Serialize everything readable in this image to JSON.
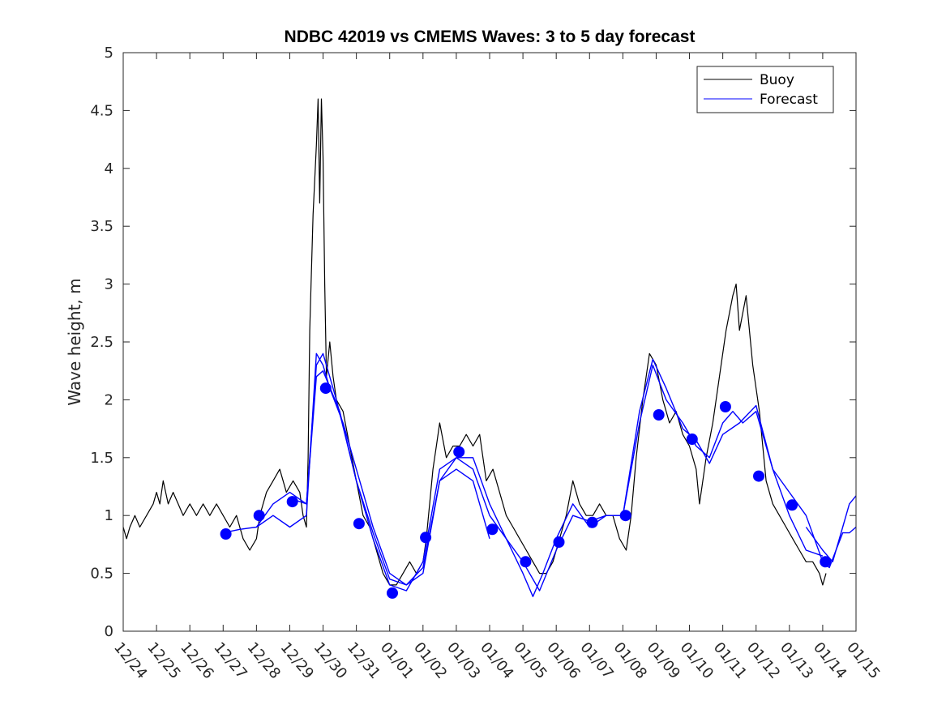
{
  "chart_data": {
    "type": "line",
    "title": "NDBC 42019 vs CMEMS Waves: 3 to 5 day forecast",
    "xlabel": "",
    "ylabel": "Wave height, m",
    "ylim": [
      0,
      5
    ],
    "yticks": [
      0,
      0.5,
      1,
      1.5,
      2,
      2.5,
      3,
      3.5,
      4,
      4.5,
      5
    ],
    "ytick_labels": [
      "0",
      "0.5",
      "1",
      "1.5",
      "2",
      "2.5",
      "3",
      "3.5",
      "4",
      "4.5",
      "5"
    ],
    "xlim": [
      0,
      22
    ],
    "x_units": "days since 12/24 00:00",
    "xtick_labels": [
      "12/24",
      "12/25",
      "12/26",
      "12/27",
      "12/28",
      "12/29",
      "12/30",
      "12/31",
      "01/01",
      "01/02",
      "01/03",
      "01/04",
      "01/05",
      "01/06",
      "01/07",
      "01/08",
      "01/09",
      "01/10",
      "01/11",
      "01/12",
      "01/13",
      "01/14",
      "01/15"
    ],
    "legend": {
      "location": "top-right",
      "entries": [
        "Buoy",
        "Forecast"
      ]
    },
    "colors": {
      "buoy": "#000000",
      "forecast": "#0000ff",
      "markers": "#0000ff"
    },
    "series": [
      {
        "name": "Buoy",
        "color": "#000000",
        "points": [
          [
            0.0,
            0.9
          ],
          [
            0.1,
            0.8
          ],
          [
            0.2,
            0.9
          ],
          [
            0.35,
            1.0
          ],
          [
            0.5,
            0.9
          ],
          [
            0.7,
            1.0
          ],
          [
            0.9,
            1.1
          ],
          [
            1.0,
            1.2
          ],
          [
            1.1,
            1.1
          ],
          [
            1.2,
            1.3
          ],
          [
            1.35,
            1.1
          ],
          [
            1.5,
            1.2
          ],
          [
            1.65,
            1.1
          ],
          [
            1.8,
            1.0
          ],
          [
            2.0,
            1.1
          ],
          [
            2.2,
            1.0
          ],
          [
            2.4,
            1.1
          ],
          [
            2.6,
            1.0
          ],
          [
            2.8,
            1.1
          ],
          [
            3.0,
            1.0
          ],
          [
            3.2,
            0.9
          ],
          [
            3.4,
            1.0
          ],
          [
            3.6,
            0.8
          ],
          [
            3.8,
            0.7
          ],
          [
            4.0,
            0.8
          ],
          [
            4.1,
            1.0
          ],
          [
            4.3,
            1.2
          ],
          [
            4.5,
            1.3
          ],
          [
            4.7,
            1.4
          ],
          [
            4.9,
            1.2
          ],
          [
            5.1,
            1.3
          ],
          [
            5.3,
            1.2
          ],
          [
            5.4,
            1.0
          ],
          [
            5.5,
            0.9
          ],
          [
            5.55,
            1.5
          ],
          [
            5.6,
            2.6
          ],
          [
            5.7,
            3.6
          ],
          [
            5.8,
            4.2
          ],
          [
            5.85,
            4.6
          ],
          [
            5.9,
            3.7
          ],
          [
            5.95,
            4.6
          ],
          [
            6.0,
            4.1
          ],
          [
            6.05,
            3.0
          ],
          [
            6.1,
            2.2
          ],
          [
            6.2,
            2.5
          ],
          [
            6.3,
            2.2
          ],
          [
            6.4,
            2.0
          ],
          [
            6.6,
            1.9
          ],
          [
            6.8,
            1.6
          ],
          [
            7.0,
            1.3
          ],
          [
            7.2,
            1.0
          ],
          [
            7.4,
            0.9
          ],
          [
            7.6,
            0.7
          ],
          [
            7.8,
            0.5
          ],
          [
            8.0,
            0.4
          ],
          [
            8.2,
            0.4
          ],
          [
            8.4,
            0.5
          ],
          [
            8.6,
            0.6
          ],
          [
            8.8,
            0.5
          ],
          [
            9.0,
            0.6
          ],
          [
            9.1,
            0.8
          ],
          [
            9.2,
            1.1
          ],
          [
            9.3,
            1.4
          ],
          [
            9.4,
            1.6
          ],
          [
            9.5,
            1.8
          ],
          [
            9.7,
            1.5
          ],
          [
            9.9,
            1.6
          ],
          [
            10.1,
            1.6
          ],
          [
            10.3,
            1.7
          ],
          [
            10.5,
            1.6
          ],
          [
            10.7,
            1.7
          ],
          [
            10.9,
            1.3
          ],
          [
            11.1,
            1.4
          ],
          [
            11.3,
            1.2
          ],
          [
            11.5,
            1.0
          ],
          [
            11.7,
            0.9
          ],
          [
            11.9,
            0.8
          ],
          [
            12.1,
            0.7
          ],
          [
            12.3,
            0.6
          ],
          [
            12.5,
            0.5
          ],
          [
            12.7,
            0.5
          ],
          [
            12.9,
            0.6
          ],
          [
            13.1,
            0.8
          ],
          [
            13.3,
            1.0
          ],
          [
            13.5,
            1.3
          ],
          [
            13.7,
            1.1
          ],
          [
            13.9,
            1.0
          ],
          [
            14.1,
            1.0
          ],
          [
            14.3,
            1.1
          ],
          [
            14.5,
            1.0
          ],
          [
            14.7,
            1.0
          ],
          [
            14.9,
            0.8
          ],
          [
            15.1,
            0.7
          ],
          [
            15.25,
            1.0
          ],
          [
            15.4,
            1.5
          ],
          [
            15.6,
            2.0
          ],
          [
            15.8,
            2.4
          ],
          [
            16.0,
            2.3
          ],
          [
            16.2,
            2.0
          ],
          [
            16.4,
            1.8
          ],
          [
            16.6,
            1.9
          ],
          [
            16.8,
            1.7
          ],
          [
            17.0,
            1.6
          ],
          [
            17.2,
            1.4
          ],
          [
            17.3,
            1.1
          ],
          [
            17.5,
            1.5
          ],
          [
            17.7,
            1.8
          ],
          [
            17.9,
            2.2
          ],
          [
            18.1,
            2.6
          ],
          [
            18.3,
            2.9
          ],
          [
            18.4,
            3.0
          ],
          [
            18.5,
            2.6
          ],
          [
            18.7,
            2.9
          ],
          [
            18.9,
            2.3
          ],
          [
            19.1,
            1.9
          ],
          [
            19.3,
            1.3
          ],
          [
            19.5,
            1.1
          ],
          [
            19.7,
            1.0
          ],
          [
            19.9,
            0.9
          ],
          [
            20.1,
            0.8
          ],
          [
            20.3,
            0.7
          ],
          [
            20.5,
            0.6
          ],
          [
            20.7,
            0.6
          ],
          [
            20.9,
            0.5
          ],
          [
            21.0,
            0.4
          ],
          [
            21.1,
            0.5
          ]
        ]
      },
      {
        "name": "Forecast",
        "color": "#0000ff",
        "segments": [
          [
            [
              3.0,
              0.85
            ],
            [
              3.5,
              0.88
            ],
            [
              4.0,
              0.9
            ],
            [
              4.5,
              1.0
            ],
            [
              5.0,
              0.9
            ],
            [
              5.5,
              1.0
            ],
            [
              5.8,
              2.4
            ],
            [
              6.0,
              2.3
            ],
            [
              6.2,
              2.1
            ],
            [
              6.6,
              1.8
            ],
            [
              7.0,
              1.4
            ],
            [
              7.5,
              0.9
            ],
            [
              8.0,
              0.5
            ],
            [
              8.5,
              0.4
            ],
            [
              9.0,
              0.5
            ],
            [
              9.5,
              1.3
            ],
            [
              10.0,
              1.4
            ],
            [
              10.5,
              1.3
            ],
            [
              11.0,
              0.8
            ]
          ],
          [
            [
              4.0,
              0.9
            ],
            [
              4.5,
              1.1
            ],
            [
              5.0,
              1.2
            ],
            [
              5.5,
              1.1
            ],
            [
              5.8,
              2.3
            ],
            [
              6.0,
              2.4
            ],
            [
              6.4,
              2.0
            ],
            [
              7.0,
              1.3
            ],
            [
              7.5,
              0.8
            ],
            [
              8.0,
              0.4
            ],
            [
              8.5,
              0.35
            ],
            [
              9.0,
              0.6
            ],
            [
              9.5,
              1.4
            ],
            [
              10.0,
              1.5
            ],
            [
              10.5,
              1.5
            ],
            [
              11.0,
              1.1
            ],
            [
              11.5,
              0.8
            ],
            [
              12.0,
              0.5
            ],
            [
              12.3,
              0.3
            ],
            [
              12.6,
              0.5
            ],
            [
              13.0,
              0.8
            ],
            [
              13.5,
              1.1
            ],
            [
              14.0,
              0.9
            ],
            [
              14.5,
              1.0
            ],
            [
              15.0,
              1.0
            ],
            [
              15.5,
              1.8
            ],
            [
              15.9,
              2.3
            ],
            [
              16.3,
              2.0
            ],
            [
              16.8,
              1.8
            ],
            [
              17.2,
              1.6
            ],
            [
              17.6,
              1.5
            ],
            [
              18.0,
              1.8
            ],
            [
              18.3,
              1.9
            ],
            [
              18.6,
              1.8
            ],
            [
              19.0,
              1.9
            ],
            [
              19.5,
              1.4
            ],
            [
              20.0,
              1.2
            ]
          ],
          [
            [
              5.0,
              1.15
            ],
            [
              5.5,
              1.1
            ],
            [
              5.8,
              2.2
            ],
            [
              6.0,
              2.25
            ],
            [
              6.5,
              1.9
            ],
            [
              7.0,
              1.3
            ],
            [
              7.5,
              0.85
            ],
            [
              8.0,
              0.45
            ],
            [
              8.5,
              0.4
            ],
            [
              9.0,
              0.55
            ],
            [
              9.5,
              1.3
            ],
            [
              10.0,
              1.5
            ],
            [
              10.5,
              1.4
            ],
            [
              11.0,
              1.0
            ],
            [
              11.5,
              0.8
            ],
            [
              12.0,
              0.6
            ],
            [
              12.5,
              0.35
            ],
            [
              13.0,
              0.7
            ],
            [
              13.5,
              1.0
            ],
            [
              14.0,
              0.95
            ],
            [
              14.5,
              1.0
            ],
            [
              15.0,
              1.0
            ],
            [
              15.5,
              1.9
            ],
            [
              15.9,
              2.35
            ],
            [
              16.3,
              2.1
            ],
            [
              16.8,
              1.75
            ],
            [
              17.2,
              1.65
            ],
            [
              17.6,
              1.45
            ],
            [
              18.0,
              1.7
            ],
            [
              18.5,
              1.8
            ],
            [
              19.0,
              1.95
            ],
            [
              19.5,
              1.4
            ],
            [
              20.0,
              1.0
            ],
            [
              20.5,
              0.7
            ],
            [
              21.0,
              0.65
            ]
          ],
          [
            [
              20.0,
              1.2
            ],
            [
              20.5,
              1.0
            ],
            [
              21.0,
              0.6
            ],
            [
              21.2,
              0.55
            ],
            [
              21.4,
              0.7
            ],
            [
              21.6,
              0.85
            ],
            [
              21.8,
              0.85
            ],
            [
              22.0,
              0.9
            ]
          ],
          [
            [
              20.5,
              0.9
            ],
            [
              21.0,
              0.7
            ],
            [
              21.3,
              0.6
            ],
            [
              21.6,
              0.9
            ],
            [
              21.8,
              1.1
            ],
            [
              22.0,
              1.17
            ]
          ]
        ]
      }
    ],
    "markers": [
      [
        3.08,
        0.84
      ],
      [
        4.08,
        1.0
      ],
      [
        5.08,
        1.12
      ],
      [
        6.08,
        2.1
      ],
      [
        7.08,
        0.93
      ],
      [
        8.08,
        0.33
      ],
      [
        9.08,
        0.81
      ],
      [
        10.08,
        1.55
      ],
      [
        11.08,
        0.88
      ],
      [
        12.08,
        0.6
      ],
      [
        13.08,
        0.77
      ],
      [
        14.08,
        0.94
      ],
      [
        15.08,
        1.0
      ],
      [
        16.08,
        1.87
      ],
      [
        17.08,
        1.66
      ],
      [
        18.08,
        1.94
      ],
      [
        19.08,
        1.34
      ],
      [
        20.08,
        1.09
      ],
      [
        21.08,
        0.6
      ]
    ]
  }
}
